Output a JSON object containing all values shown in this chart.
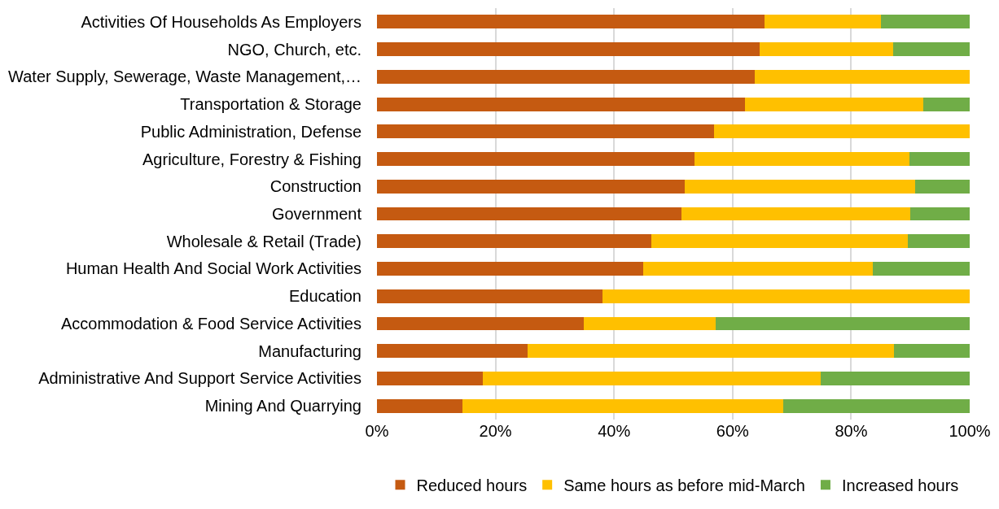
{
  "chart_data": {
    "type": "bar",
    "orientation": "horizontal",
    "stacked": true,
    "categories": [
      "Activities Of Households As Employers",
      "NGO, Church, etc.",
      "Water Supply, Sewerage, Waste Management,…",
      "Transportation & Storage",
      "Public Administration, Defense",
      "Agriculture, Forestry & Fishing",
      "Construction",
      "Government",
      "Wholesale & Retail (Trade)",
      "Human Health And Social Work Activities",
      "Education",
      "Accommodation & Food Service Activities",
      "Manufacturing",
      "Administrative And Support Service Activities",
      "Mining And Quarrying"
    ],
    "series": [
      {
        "name": "Reduced hours",
        "color": "#c55a11",
        "values": [
          65.4,
          64.6,
          63.7,
          62.1,
          56.9,
          53.6,
          51.9,
          51.4,
          46.3,
          44.9,
          38.1,
          34.9,
          25.4,
          17.9,
          14.4
        ]
      },
      {
        "name": "Same hours as before mid-March",
        "color": "#ffc000",
        "values": [
          19.6,
          22.5,
          36.3,
          30.1,
          43.1,
          36.2,
          38.9,
          38.6,
          43.3,
          38.7,
          61.9,
          22.2,
          61.8,
          57.0,
          54.1
        ]
      },
      {
        "name": "Increased hours",
        "color": "#70ad47",
        "values": [
          15.0,
          12.9,
          null,
          7.8,
          null,
          10.2,
          9.2,
          10.0,
          10.4,
          16.4,
          null,
          42.9,
          12.8,
          25.1,
          31.5
        ]
      }
    ],
    "xlim": [
      0,
      100
    ],
    "xticks": [
      {
        "value": 0,
        "label": "0%"
      },
      {
        "value": 20,
        "label": "20%"
      },
      {
        "value": 40,
        "label": "40%"
      },
      {
        "value": 60,
        "label": "60%"
      },
      {
        "value": 80,
        "label": "80%"
      },
      {
        "value": 100,
        "label": "100%"
      }
    ],
    "grid": "x",
    "legend": "bottom"
  }
}
